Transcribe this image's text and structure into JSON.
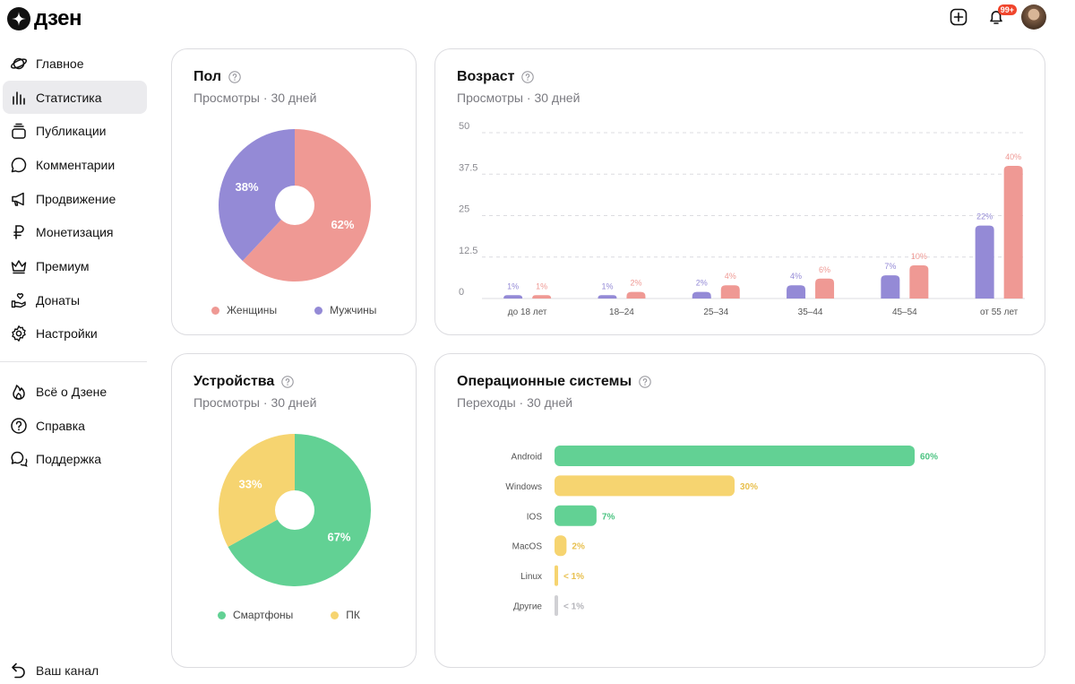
{
  "header": {
    "logo_text": "дзен",
    "notification_count": "99+"
  },
  "sidebar": {
    "items": [
      {
        "label": "Главное",
        "icon": "planet-icon"
      },
      {
        "label": "Статистика",
        "icon": "stats-bars-icon",
        "active": true
      },
      {
        "label": "Публикации",
        "icon": "publications-stack-icon"
      },
      {
        "label": "Комментарии",
        "icon": "comment-bubble-icon"
      },
      {
        "label": "Продвижение",
        "icon": "megaphone-icon"
      },
      {
        "label": "Монетизация",
        "icon": "ruble-icon"
      },
      {
        "label": "Премиум",
        "icon": "crown-icon"
      },
      {
        "label": "Донаты",
        "icon": "donate-hand-icon"
      },
      {
        "label": "Настройки",
        "icon": "gear-icon"
      }
    ],
    "secondary": [
      {
        "label": "Всё о Дзене",
        "icon": "flame-icon"
      },
      {
        "label": "Справка",
        "icon": "question-circle-icon"
      },
      {
        "label": "Поддержка",
        "icon": "support-chat-icon"
      }
    ],
    "bottom_link": {
      "label": "Ваш канал",
      "icon": "back-arrow-icon"
    }
  },
  "colors": {
    "female": "#ef9994",
    "male": "#948ad6",
    "smartphone": "#62d194",
    "pc": "#f6d470",
    "other": "#d0d0d4"
  },
  "cards": {
    "gender": {
      "title": "Пол",
      "subtitle": "Просмотры · 30 дней"
    },
    "age": {
      "title": "Возраст",
      "subtitle": "Просмотры · 30 дней"
    },
    "devices": {
      "title": "Устройства",
      "subtitle": "Просмотры · 30 дней"
    },
    "os": {
      "title": "Операционные системы",
      "subtitle": "Переходы · 30 дней"
    }
  },
  "chart_data": [
    {
      "id": "gender",
      "type": "pie",
      "title": "Пол",
      "slices": [
        {
          "name": "Женщины",
          "value": 62,
          "label": "62%",
          "color": "#ef9994"
        },
        {
          "name": "Мужчины",
          "value": 38,
          "label": "38%",
          "color": "#948ad6"
        }
      ]
    },
    {
      "id": "age",
      "type": "bar",
      "title": "Возраст",
      "categories": [
        "до 18 лет",
        "18–24",
        "25–34",
        "35–44",
        "45–54",
        "от 55 лет"
      ],
      "yticks": [
        "50",
        "37.5",
        "25",
        "12.5",
        "0"
      ],
      "ylim": [
        0,
        50
      ],
      "series": [
        {
          "name": "Мужчины",
          "color": "#948ad6",
          "values": [
            1,
            1,
            2,
            4,
            7,
            22
          ],
          "labels": [
            "1%",
            "1%",
            "2%",
            "4%",
            "7%",
            "22%"
          ]
        },
        {
          "name": "Женщины",
          "color": "#ef9994",
          "values": [
            1,
            2,
            4,
            6,
            10,
            40
          ],
          "labels": [
            "1%",
            "2%",
            "4%",
            "6%",
            "10%",
            "40%"
          ]
        }
      ]
    },
    {
      "id": "devices",
      "type": "pie",
      "title": "Устройства",
      "slices": [
        {
          "name": "Смартфоны",
          "value": 67,
          "label": "67%",
          "color": "#62d194"
        },
        {
          "name": "ПК",
          "value": 33,
          "label": "33%",
          "color": "#f6d470"
        }
      ]
    },
    {
      "id": "os",
      "type": "bar",
      "orientation": "horizontal",
      "title": "Операционные системы",
      "categories": [
        "Android",
        "Windows",
        "IOS",
        "MacOS",
        "Linux",
        "Другие"
      ],
      "values": [
        60,
        30,
        7,
        2,
        0.5,
        0.3
      ],
      "labels": [
        "60%",
        "30%",
        "7%",
        "2%",
        "< 1%",
        "< 1%"
      ],
      "colors": [
        "#62d194",
        "#f6d470",
        "#62d194",
        "#f6d470",
        "#f6d470",
        "#d0d0d4"
      ],
      "label_colors": [
        "#4ec483",
        "#e8c04f",
        "#4ec483",
        "#e8c04f",
        "#e8c04f",
        "#b4b4ba"
      ]
    }
  ]
}
